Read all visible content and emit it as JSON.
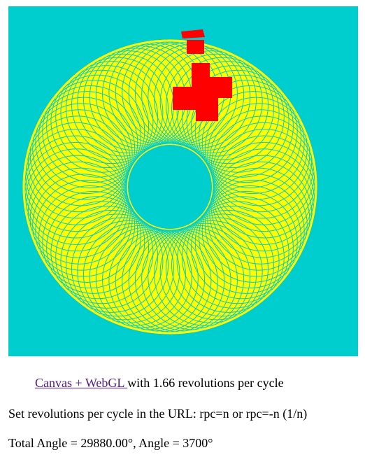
{
  "canvas": {
    "background_color": "#00cdcd",
    "ring_fill_color": "#ffff00",
    "stroke_color": "#00cdcd",
    "marker_color": "#ff0000"
  },
  "caption": {
    "link_text": "Canvas + WebGL ",
    "rate_text": "with 1.66 revolutions per cycle"
  },
  "instructions": {
    "text": "Set revolutions per cycle in the URL: rpc=n or rpc=-n (1/n)"
  },
  "status": {
    "text": "Total Angle = 29880.00°, Angle = 3700°"
  }
}
